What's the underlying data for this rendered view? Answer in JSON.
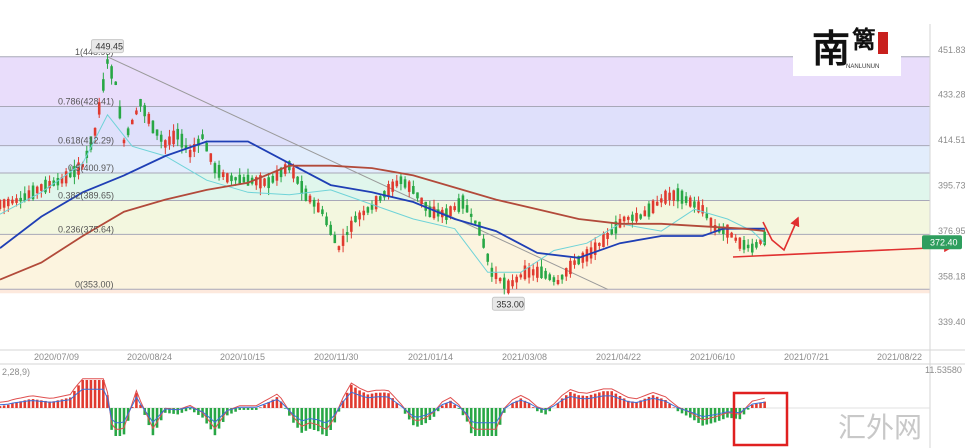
{
  "chart_data": {
    "type": "candlestick",
    "price_axis": {
      "ticks": [
        "451.83",
        "433.28",
        "414.51",
        "395.73",
        "376.95",
        "358.18",
        "339.40"
      ],
      "ylim": [
        330,
        460
      ],
      "current_price": "372.40",
      "current_value": 372.4
    },
    "date_ticks": [
      "2020/07/09",
      "2020/08/24",
      "2020/10/15",
      "2020/11/30",
      "2021/01/14",
      "2021/03/08",
      "2021/04/22",
      "2021/06/10",
      "2021/07/21",
      "2021/08/22"
    ],
    "fibonacci": {
      "high": 448.95,
      "low": 353.0,
      "levels": [
        {
          "label": "1(448.95)",
          "value": 448.95,
          "color": "#e9ddfb"
        },
        {
          "label": "0.786(428.41)",
          "value": 428.41,
          "color": "#dfe0fb"
        },
        {
          "label": "0.618(412.29)",
          "value": 412.29,
          "color": "#e2edfc"
        },
        {
          "label": "0.5(400.97)",
          "value": 400.97,
          "color": "#e0f6ec"
        },
        {
          "label": "0.382(389.65)",
          "value": 389.65,
          "color": "#f3f7df"
        },
        {
          "label": "0.236(375.64)",
          "value": 375.64,
          "color": "#fcf4df"
        },
        {
          "label": "0(353.00)",
          "value": 353.0,
          "color": "#fde9dd"
        }
      ]
    },
    "annotations": {
      "high_label": "449.45",
      "high_value": 449.45,
      "low_label": "353.00",
      "low_value": 353.0
    },
    "series": [
      {
        "name": "ma_short",
        "color": "#6fd3d8",
        "values": [
          [
            0,
            384
          ],
          [
            10,
            393
          ],
          [
            20,
            405
          ],
          [
            26,
            425
          ],
          [
            32,
            412
          ],
          [
            40,
            408
          ],
          [
            50,
            398
          ],
          [
            60,
            393
          ],
          [
            70,
            392
          ],
          [
            80,
            394
          ],
          [
            90,
            388
          ],
          [
            100,
            382
          ],
          [
            110,
            378
          ],
          [
            118,
            360
          ],
          [
            126,
            360
          ],
          [
            134,
            369
          ],
          [
            142,
            372
          ],
          [
            150,
            380
          ],
          [
            160,
            377
          ],
          [
            168,
            386
          ],
          [
            176,
            382
          ],
          [
            182,
            377
          ],
          [
            185,
            372
          ]
        ]
      },
      {
        "name": "ma_mid",
        "color": "#1f3fb5",
        "values": [
          [
            0,
            370
          ],
          [
            10,
            383
          ],
          [
            20,
            393
          ],
          [
            30,
            400
          ],
          [
            40,
            408
          ],
          [
            50,
            414
          ],
          [
            60,
            414
          ],
          [
            70,
            405
          ],
          [
            80,
            396
          ],
          [
            90,
            393
          ],
          [
            100,
            389
          ],
          [
            110,
            382
          ],
          [
            120,
            377
          ],
          [
            130,
            368
          ],
          [
            140,
            366
          ],
          [
            150,
            372
          ],
          [
            160,
            375
          ],
          [
            170,
            375
          ],
          [
            175,
            378
          ],
          [
            185,
            378
          ]
        ]
      },
      {
        "name": "ma_long",
        "color": "#b24a3a",
        "values": [
          [
            0,
            357
          ],
          [
            10,
            364
          ],
          [
            20,
            375
          ],
          [
            30,
            385
          ],
          [
            40,
            390
          ],
          [
            50,
            394
          ],
          [
            60,
            397
          ],
          [
            70,
            404
          ],
          [
            80,
            404
          ],
          [
            90,
            403
          ],
          [
            100,
            400
          ],
          [
            110,
            395
          ],
          [
            120,
            390
          ],
          [
            130,
            386
          ],
          [
            140,
            382
          ],
          [
            150,
            380
          ],
          [
            160,
            380
          ],
          [
            170,
            379
          ],
          [
            180,
            378
          ],
          [
            185,
            377
          ]
        ]
      }
    ],
    "candles": {
      "color_up": "#e03a2f",
      "color_down": "#28a745",
      "path": [
        [
          0,
          388
        ],
        [
          5,
          390
        ],
        [
          10,
          395
        ],
        [
          15,
          398
        ],
        [
          20,
          404
        ],
        [
          23,
          418
        ],
        [
          26,
          447
        ],
        [
          28,
          438
        ],
        [
          30,
          414
        ],
        [
          32,
          422
        ],
        [
          34,
          430
        ],
        [
          37,
          420
        ],
        [
          40,
          413
        ],
        [
          43,
          417
        ],
        [
          46,
          409
        ],
        [
          49,
          416
        ],
        [
          52,
          403
        ],
        [
          55,
          399
        ],
        [
          60,
          398
        ],
        [
          65,
          397
        ],
        [
          70,
          404
        ],
        [
          74,
          392
        ],
        [
          78,
          385
        ],
        [
          82,
          370
        ],
        [
          86,
          382
        ],
        [
          90,
          387
        ],
        [
          94,
          394
        ],
        [
          97,
          398
        ],
        [
          100,
          394
        ],
        [
          104,
          385
        ],
        [
          108,
          384
        ],
        [
          112,
          389
        ],
        [
          116,
          378
        ],
        [
          119,
          360
        ],
        [
          123,
          354
        ],
        [
          127,
          360
        ],
        [
          131,
          360
        ],
        [
          135,
          356
        ],
        [
          139,
          364
        ],
        [
          143,
          368
        ],
        [
          147,
          375
        ],
        [
          151,
          382
        ],
        [
          155,
          383
        ],
        [
          158,
          387
        ],
        [
          161,
          391
        ],
        [
          164,
          392
        ],
        [
          167,
          389
        ],
        [
          170,
          386
        ],
        [
          173,
          378
        ],
        [
          176,
          377
        ],
        [
          179,
          372
        ],
        [
          182,
          370
        ],
        [
          185,
          374
        ]
      ]
    },
    "macd": {
      "label": "2,28,9)",
      "value_label": "11.53580",
      "hist_color_pos": "#e03a2f",
      "hist_color_neg": "#28a745",
      "fast_color": "#e05050",
      "slow_color": "#3a6fd8"
    },
    "logo": {
      "text_main": "南",
      "text_side": "篱",
      "subtitle": "NANLUNUN"
    },
    "watermark": "汇外网"
  }
}
